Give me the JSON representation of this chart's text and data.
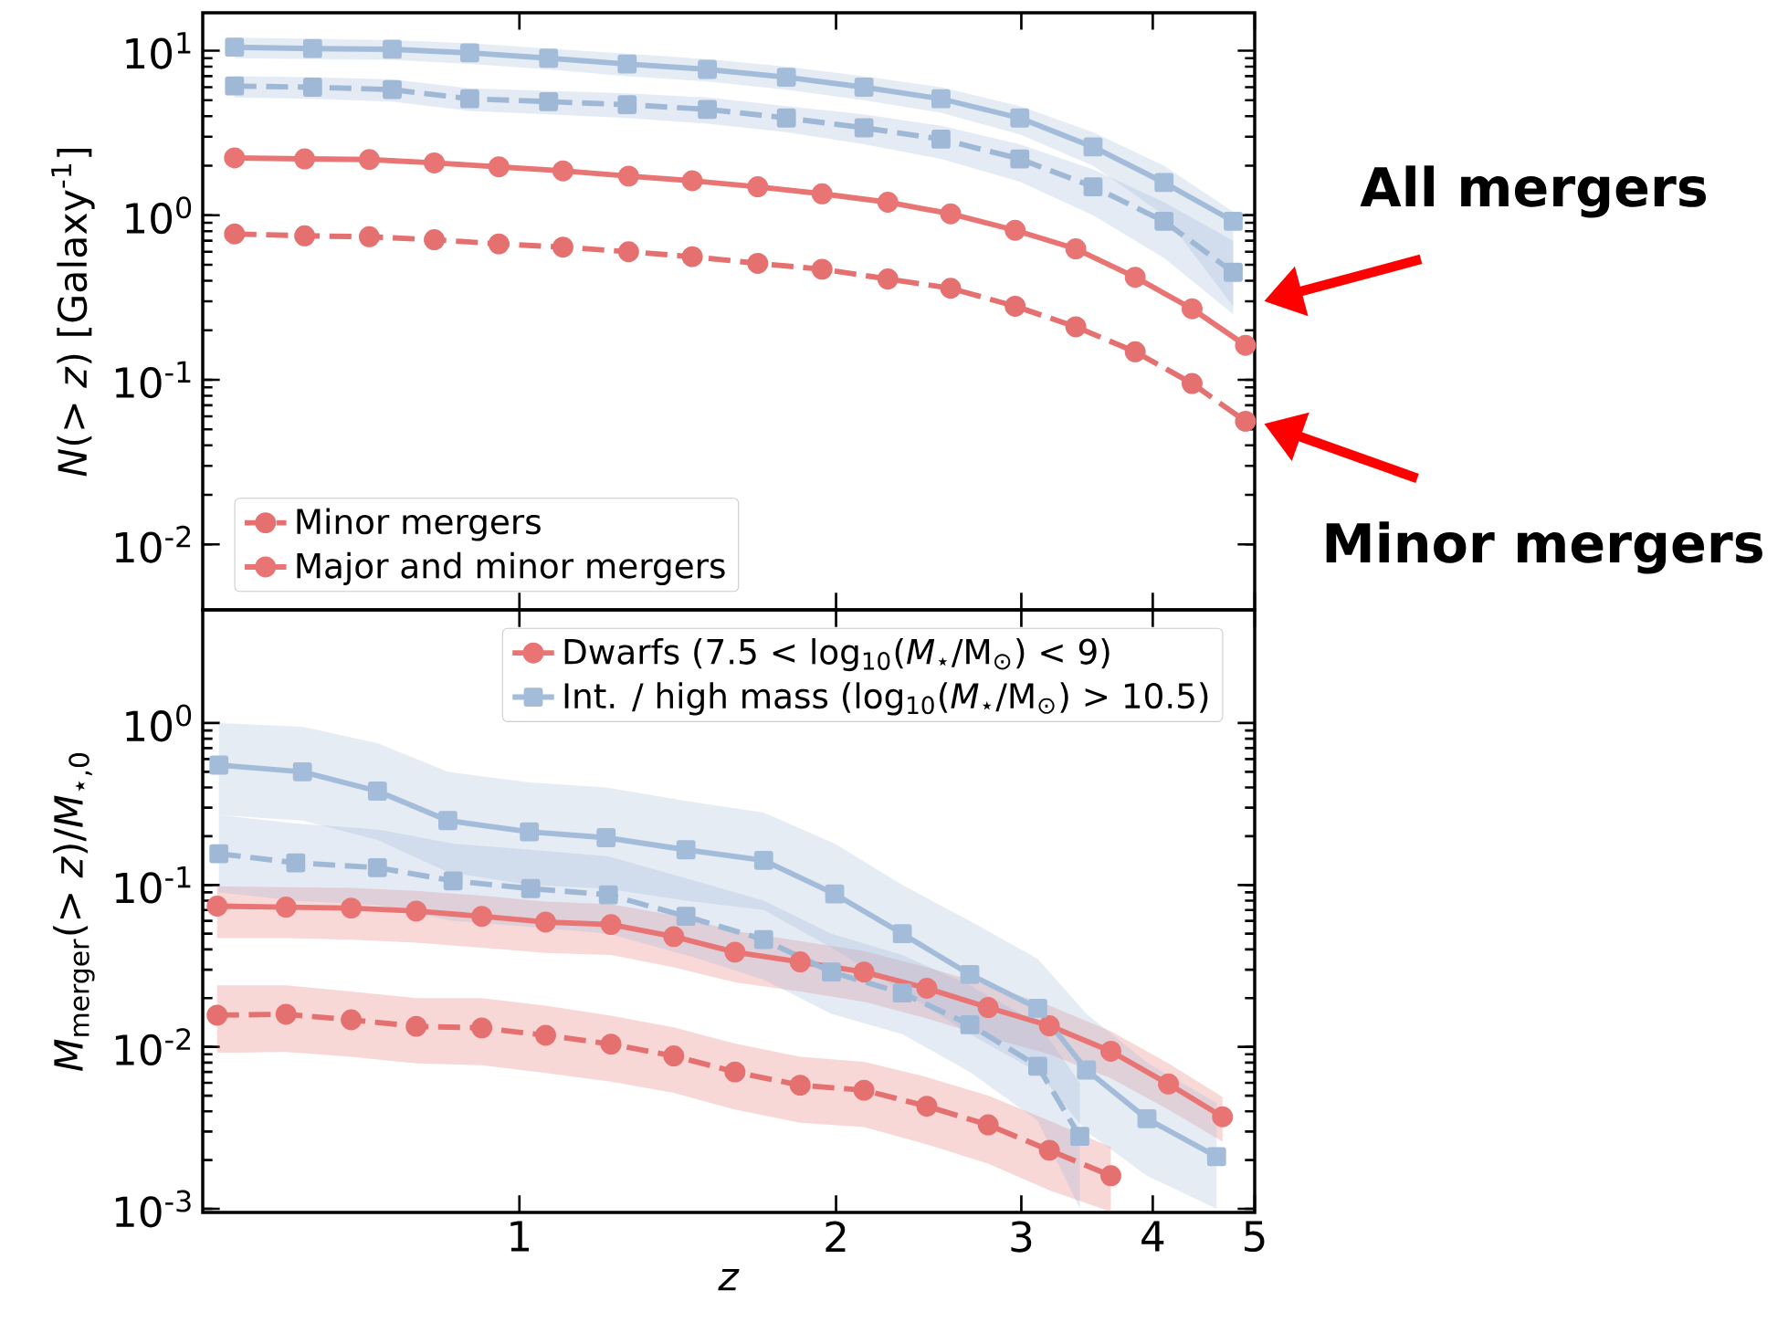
{
  "chart_data": [
    {
      "type": "line",
      "ylabel": "*N*(> *z*) [Galaxy$^{-1}$]",
      "log": "xy",
      "xlim": [
        0.5,
        5
      ],
      "ylim": [
        0.004,
        17
      ],
      "xticks": [
        1,
        2,
        3,
        4,
        5
      ],
      "yticks": [
        {
          "value": 0.01,
          "label": "10$^{-2}$"
        },
        {
          "value": 0.1,
          "label": "10$^{-1}$"
        },
        {
          "value": 1,
          "label": "10$^{0}$"
        },
        {
          "value": 10,
          "label": "10$^{1}$"
        }
      ],
      "tick_labels": "y",
      "legend": "bottom left",
      "annotations": [
        "All mergers",
        "Minor mergers"
      ],
      "series": [
        {
          "color": "#a3bcd9",
          "marker": "square",
          "line_style": "solid",
          "x": [
            0.536,
            0.636,
            0.757,
            0.897,
            1.066,
            1.266,
            1.509,
            1.794,
            2.126,
            2.516,
            2.99,
            3.51,
            4.1,
            4.77
          ],
          "values": [
            10.5,
            10.3,
            10.2,
            9.7,
            9.0,
            8.3,
            7.7,
            6.9,
            6.0,
            5.1,
            3.9,
            2.6,
            1.58,
            0.92
          ],
          "lower": [
            9.0,
            8.9,
            8.8,
            8.3,
            7.7,
            7.0,
            6.5,
            5.8,
            5.0,
            4.2,
            3.1,
            2.0,
            1.0,
            0.28
          ],
          "upper": [
            12,
            11.8,
            11.6,
            11.1,
            10.3,
            9.6,
            8.9,
            8.0,
            7.0,
            6.0,
            4.6,
            3.2,
            2.0,
            1.05
          ]
        },
        {
          "color": "#9fb8d6",
          "marker": "square",
          "line_style": "dashed",
          "x": [
            0.536,
            0.636,
            0.757,
            0.897,
            1.066,
            1.266,
            1.509,
            1.794,
            2.126,
            2.516,
            2.99,
            3.51,
            4.1,
            4.77
          ],
          "values": [
            6.1,
            6.0,
            5.8,
            5.1,
            4.9,
            4.7,
            4.4,
            3.9,
            3.4,
            2.9,
            2.2,
            1.49,
            0.92,
            0.45
          ],
          "lower": [
            5.2,
            5.1,
            4.9,
            4.3,
            4.1,
            3.9,
            3.6,
            3.2,
            2.7,
            2.2,
            1.6,
            1.0,
            0.55,
            0.25
          ],
          "upper": [
            7.0,
            6.9,
            6.7,
            5.9,
            5.7,
            5.5,
            5.2,
            4.6,
            4.1,
            3.5,
            2.7,
            1.9,
            1.2,
            0.7
          ]
        },
        {
          "name": "Minor mergers",
          "color": "#e57070",
          "marker": "circle",
          "line_style": "dashed",
          "x": [
            0.536,
            0.625,
            0.72,
            0.83,
            0.956,
            1.1,
            1.27,
            1.46,
            1.685,
            1.94,
            2.24,
            2.57,
            2.96,
            3.38,
            3.85,
            4.36,
            4.9
          ],
          "values": [
            0.77,
            0.75,
            0.74,
            0.71,
            0.67,
            0.64,
            0.6,
            0.56,
            0.51,
            0.47,
            0.41,
            0.36,
            0.28,
            0.21,
            0.148,
            0.095,
            0.056
          ]
        },
        {
          "name": "Major and minor mergers",
          "color": "#e87474",
          "marker": "circle",
          "line_style": "solid",
          "x": [
            0.536,
            0.625,
            0.72,
            0.83,
            0.956,
            1.1,
            1.27,
            1.46,
            1.685,
            1.94,
            2.24,
            2.57,
            2.96,
            3.38,
            3.85,
            4.36,
            4.9
          ],
          "values": [
            2.23,
            2.2,
            2.18,
            2.08,
            1.97,
            1.86,
            1.73,
            1.62,
            1.49,
            1.35,
            1.2,
            1.02,
            0.81,
            0.625,
            0.42,
            0.27,
            0.162
          ]
        }
      ]
    },
    {
      "type": "line",
      "xlabel": "*z*",
      "ylabel": "*M*$_{merger}$(> *z*)/*M*$_{⋆,0}$",
      "log": "xy",
      "xlim": [
        0.5,
        5
      ],
      "ylim": [
        0.00095,
        5
      ],
      "xticks": [
        1,
        2,
        3,
        4,
        5
      ],
      "yticks": [
        {
          "value": 0.001,
          "label": "10$^{-3}$"
        },
        {
          "value": 0.01,
          "label": "10$^{-2}$"
        },
        {
          "value": 0.1,
          "label": "10$^{-1}$"
        },
        {
          "value": 1,
          "label": "10$^{0}$"
        }
      ],
      "legend": "top right",
      "series": [
        {
          "name": "Dwarfs (7.5 < log$_{10}$(*M*$_{⋆}$/M$_{⊙}$) < 9)",
          "color": "#e87474",
          "marker": "circle",
          "line_style": "solid",
          "x": [
            0.516,
            0.6,
            0.692,
            0.798,
            0.921,
            1.059,
            1.222,
            1.402,
            1.603,
            1.849,
            2.126,
            2.44,
            2.79,
            3.19,
            3.65,
            4.14,
            4.66
          ],
          "values": [
            0.074,
            0.073,
            0.072,
            0.069,
            0.064,
            0.059,
            0.057,
            0.048,
            0.0385,
            0.0335,
            0.029,
            0.023,
            0.0175,
            0.0135,
            0.0094,
            0.0059,
            0.0037
          ],
          "lower": [
            0.047,
            0.047,
            0.046,
            0.044,
            0.041,
            0.038,
            0.037,
            0.031,
            0.025,
            0.022,
            0.019,
            0.015,
            0.0115,
            0.009,
            0.0064,
            0.0041,
            0.0026
          ],
          "upper": [
            0.098,
            0.097,
            0.096,
            0.092,
            0.086,
            0.079,
            0.076,
            0.065,
            0.052,
            0.045,
            0.039,
            0.031,
            0.024,
            0.018,
            0.0125,
            0.0079,
            0.0049
          ]
        },
        {
          "color": "#e57070",
          "marker": "circle",
          "line_style": "dashed",
          "x": [
            0.516,
            0.6,
            0.692,
            0.798,
            0.921,
            1.059,
            1.222,
            1.402,
            1.603,
            1.849,
            2.126,
            2.44,
            2.79,
            3.19,
            3.65
          ],
          "values": [
            0.0157,
            0.0159,
            0.0147,
            0.0134,
            0.0131,
            0.0118,
            0.0104,
            0.0088,
            0.007,
            0.0058,
            0.0054,
            0.0043,
            0.0033,
            0.0023,
            0.0016
          ],
          "lower": [
            0.0092,
            0.0093,
            0.0087,
            0.0079,
            0.0077,
            0.0069,
            0.0061,
            0.0052,
            0.0041,
            0.0034,
            0.0032,
            0.0025,
            0.0019,
            0.0013,
            0.00096
          ],
          "upper": [
            0.024,
            0.024,
            0.022,
            0.02,
            0.02,
            0.018,
            0.0156,
            0.0132,
            0.0105,
            0.0087,
            0.0081,
            0.0065,
            0.005,
            0.0035,
            0.0024
          ]
        },
        {
          "name": "Int. / high mass (log$_{10}$(*M*$_{⋆}$/M$_{⊙}$) > 10.5)",
          "color": "#a3bcd9",
          "marker": "square",
          "line_style": "solid",
          "x": [
            0.518,
            0.622,
            0.733,
            0.855,
            1.022,
            1.209,
            1.44,
            1.707,
            1.994,
            2.312,
            2.68,
            3.11,
            3.46,
            3.95,
            4.6
          ],
          "values": [
            0.55,
            0.5,
            0.38,
            0.25,
            0.213,
            0.196,
            0.165,
            0.142,
            0.088,
            0.05,
            0.028,
            0.0173,
            0.0072,
            0.0036,
            0.0021
          ],
          "lower": [
            0.27,
            0.25,
            0.19,
            0.12,
            0.1,
            0.095,
            0.08,
            0.07,
            0.04,
            0.022,
            0.012,
            0.007,
            0.003,
            0.0016,
            0.001
          ],
          "upper": [
            1.0,
            0.95,
            0.75,
            0.5,
            0.43,
            0.4,
            0.33,
            0.28,
            0.18,
            0.1,
            0.06,
            0.035,
            0.016,
            0.008,
            0.0045
          ]
        },
        {
          "color": "#9fb8d6",
          "marker": "square",
          "line_style": "dashed",
          "x": [
            0.518,
            0.613,
            0.733,
            0.865,
            1.025,
            1.215,
            1.44,
            1.707,
            1.98,
            2.312,
            2.68,
            3.11,
            3.41
          ],
          "values": [
            0.156,
            0.137,
            0.128,
            0.106,
            0.095,
            0.087,
            0.064,
            0.046,
            0.029,
            0.0215,
            0.0137,
            0.0076,
            0.0028
          ],
          "lower": [
            0.09,
            0.08,
            0.075,
            0.06,
            0.055,
            0.05,
            0.037,
            0.026,
            0.016,
            0.012,
            0.007,
            0.0035,
            0.001
          ],
          "upper": [
            0.27,
            0.24,
            0.22,
            0.18,
            0.165,
            0.15,
            0.11,
            0.08,
            0.05,
            0.037,
            0.024,
            0.014,
            0.006
          ]
        }
      ]
    }
  ]
}
